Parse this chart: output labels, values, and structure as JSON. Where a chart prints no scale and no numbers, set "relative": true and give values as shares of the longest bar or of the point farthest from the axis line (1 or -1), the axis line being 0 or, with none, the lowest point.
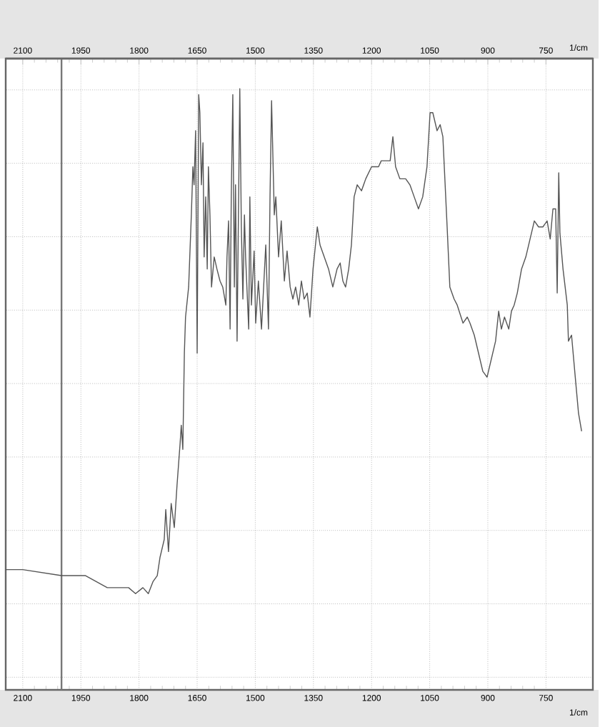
{
  "chart_data": {
    "type": "line",
    "relative": true,
    "xlabel": "1/cm",
    "x2label": "1/cm",
    "xlim": [
      2144,
      629
    ],
    "xticks": [
      2100,
      1950,
      1800,
      1650,
      1500,
      1350,
      1200,
      1050,
      900,
      750
    ],
    "x2lim": [
      2144,
      629
    ],
    "x2ticks": [
      2100,
      1950,
      1800,
      1650,
      1500,
      1350,
      1200,
      1050,
      900,
      750
    ],
    "tick_labels": "x",
    "grid": true,
    "ref_lines": [
      {
        "axis": "x",
        "value": 2000,
        "color": "#777777"
      }
    ],
    "series": [
      {
        "color": "#555555",
        "x": [
          2144,
          2100,
          2000,
          1938,
          1882,
          1846,
          1827,
          1809,
          1790,
          1776,
          1764,
          1753,
          1746,
          1735,
          1731,
          1724,
          1717,
          1709,
          1702,
          1694,
          1691,
          1687,
          1683,
          1680,
          1672,
          1665,
          1661,
          1658,
          1654,
          1650,
          1646,
          1643,
          1639,
          1635,
          1632,
          1628,
          1624,
          1621,
          1617,
          1613,
          1606,
          1599,
          1591,
          1584,
          1576,
          1573,
          1569,
          1565,
          1562,
          1558,
          1554,
          1551,
          1547,
          1540,
          1536,
          1532,
          1528,
          1525,
          1517,
          1514,
          1510,
          1503,
          1499,
          1492,
          1484,
          1473,
          1466,
          1462,
          1458,
          1451,
          1447,
          1440,
          1433,
          1425,
          1418,
          1410,
          1403,
          1396,
          1388,
          1381,
          1374,
          1366,
          1359,
          1351,
          1340,
          1333,
          1322,
          1311,
          1300,
          1289,
          1281,
          1274,
          1267,
          1259,
          1252,
          1245,
          1237,
          1226,
          1215,
          1200,
          1189,
          1182,
          1175,
          1163,
          1152,
          1145,
          1138,
          1127,
          1112,
          1101,
          1090,
          1079,
          1068,
          1057,
          1049,
          1042,
          1031,
          1023,
          1016,
          1005,
          998,
          987,
          979,
          964,
          953,
          946,
          935,
          924,
          913,
          902,
          891,
          880,
          872,
          865,
          857,
          846,
          839,
          832,
          824,
          813,
          802,
          791,
          780,
          769,
          758,
          747,
          739,
          732,
          725,
          721,
          717,
          714,
          706,
          695,
          692,
          684,
          673,
          666,
          658
        ],
        "values": [
          0.2,
          0.2,
          0.19,
          0.19,
          0.17,
          0.17,
          0.17,
          0.16,
          0.17,
          0.16,
          0.18,
          0.19,
          0.22,
          0.25,
          0.3,
          0.23,
          0.31,
          0.27,
          0.34,
          0.41,
          0.44,
          0.4,
          0.56,
          0.62,
          0.67,
          0.79,
          0.87,
          0.84,
          0.93,
          0.56,
          0.99,
          0.96,
          0.84,
          0.91,
          0.72,
          0.82,
          0.7,
          0.87,
          0.79,
          0.67,
          0.72,
          0.7,
          0.68,
          0.67,
          0.64,
          0.72,
          0.78,
          0.6,
          0.82,
          0.99,
          0.67,
          0.84,
          0.58,
          1.0,
          0.77,
          0.65,
          0.79,
          0.72,
          0.6,
          0.82,
          0.64,
          0.73,
          0.61,
          0.68,
          0.6,
          0.74,
          0.6,
          0.82,
          0.98,
          0.79,
          0.82,
          0.72,
          0.78,
          0.68,
          0.73,
          0.67,
          0.65,
          0.67,
          0.64,
          0.68,
          0.65,
          0.66,
          0.62,
          0.7,
          0.77,
          0.74,
          0.72,
          0.7,
          0.67,
          0.7,
          0.71,
          0.68,
          0.67,
          0.7,
          0.74,
          0.82,
          0.84,
          0.83,
          0.85,
          0.87,
          0.87,
          0.87,
          0.88,
          0.88,
          0.88,
          0.92,
          0.87,
          0.85,
          0.85,
          0.84,
          0.82,
          0.8,
          0.82,
          0.87,
          0.96,
          0.96,
          0.93,
          0.94,
          0.92,
          0.77,
          0.67,
          0.65,
          0.64,
          0.61,
          0.62,
          0.61,
          0.59,
          0.56,
          0.53,
          0.52,
          0.55,
          0.58,
          0.63,
          0.6,
          0.62,
          0.6,
          0.63,
          0.64,
          0.66,
          0.7,
          0.72,
          0.75,
          0.78,
          0.77,
          0.77,
          0.78,
          0.75,
          0.8,
          0.8,
          0.66,
          0.86,
          0.76,
          0.7,
          0.64,
          0.58,
          0.59,
          0.51,
          0.46,
          0.43
        ]
      }
    ]
  }
}
